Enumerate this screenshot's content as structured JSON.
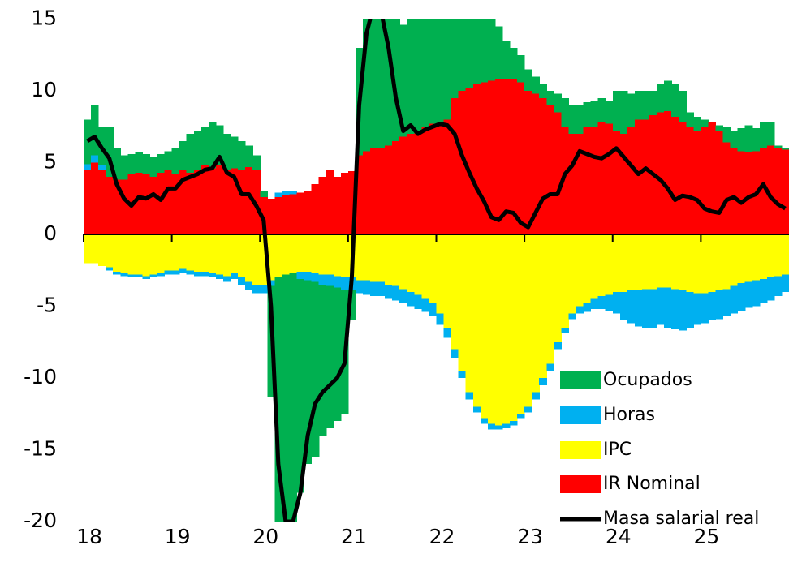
{
  "chart_data": {
    "type": "bar",
    "stacked": true,
    "categories": [
      "18",
      null,
      null,
      null,
      null,
      null,
      null,
      null,
      null,
      null,
      null,
      null,
      "19",
      null,
      null,
      null,
      null,
      null,
      null,
      null,
      null,
      null,
      null,
      null,
      "20",
      null,
      null,
      null,
      null,
      null,
      null,
      null,
      null,
      null,
      null,
      null,
      "21",
      null,
      null,
      null,
      null,
      null,
      null,
      null,
      null,
      null,
      null,
      null,
      "22",
      null,
      null,
      null,
      null,
      null,
      null,
      null,
      null,
      null,
      null,
      null,
      "23",
      null,
      null,
      null,
      null,
      null,
      null,
      null,
      null,
      null,
      null,
      null,
      "24",
      null,
      null,
      null,
      null,
      null,
      null,
      null,
      null,
      null,
      null,
      null,
      "25",
      null,
      null,
      null,
      null,
      null,
      null,
      null,
      null,
      null,
      null,
      null
    ],
    "ylim": [
      -20,
      15
    ],
    "yticks": [
      -20,
      -15,
      -10,
      -5,
      0,
      5,
      10,
      15
    ],
    "grid": false,
    "legend": "lower right",
    "series": [
      {
        "name": "Ocupados",
        "color": "#00b050",
        "values": [
          3.1,
          3.5,
          2.7,
          3.5,
          2.2,
          1.7,
          1.4,
          1.4,
          1.4,
          1.4,
          1.3,
          1.3,
          1.8,
          2,
          2.7,
          2.7,
          2.7,
          3.2,
          2.8,
          2.5,
          2.2,
          2,
          1.5,
          1,
          0.4,
          -7.7,
          -17,
          -17.2,
          -17.3,
          -14.9,
          -12.8,
          -12.2,
          -10.5,
          -9.9,
          -9.3,
          -8.6,
          -2.1,
          7.5,
          10.2,
          11,
          10.5,
          9.8,
          9,
          7.8,
          8.5,
          8.8,
          9,
          8.3,
          8.3,
          7.5,
          6,
          5.5,
          5.1,
          4.7,
          4.4,
          4.3,
          3.7,
          2.7,
          2.2,
          1.9,
          1.5,
          1.2,
          1,
          1,
          1.3,
          2,
          2,
          2,
          1.7,
          1.8,
          1.7,
          1.6,
          2.8,
          3,
          2.3,
          2,
          2,
          1.7,
          2,
          2.1,
          2.3,
          2.2,
          1,
          1,
          0.5,
          0,
          0.4,
          1.1,
          1.2,
          1.6,
          1.9,
          1.6,
          1.8,
          1.6,
          0.2,
          0.1
        ]
      },
      {
        "name": "Horas",
        "color": "#00b0f0",
        "values": [
          0.4,
          0.5,
          0.3,
          -0.2,
          -0.2,
          -0.2,
          -0.2,
          -0.2,
          -0.2,
          -0.2,
          -0.2,
          -0.3,
          -0.3,
          -0.3,
          -0.3,
          -0.3,
          -0.3,
          -0.3,
          -0.3,
          -0.4,
          -0.4,
          -0.5,
          -0.6,
          -0.6,
          -0.6,
          -0.4,
          0.3,
          0.3,
          0.2,
          -0.5,
          -0.6,
          -0.6,
          -0.7,
          -0.8,
          -0.8,
          -0.9,
          -0.9,
          -0.9,
          -1,
          -1,
          -1,
          -1,
          -1,
          -1,
          -1,
          -1,
          -0.9,
          -0.9,
          -0.8,
          -0.7,
          -0.6,
          -0.5,
          -0.5,
          -0.4,
          -0.4,
          -0.4,
          -0.3,
          -0.3,
          -0.3,
          -0.3,
          -0.4,
          -0.5,
          -0.5,
          -0.5,
          -0.5,
          -0.4,
          -0.4,
          -0.5,
          -0.6,
          -0.7,
          -0.9,
          -1.1,
          -1.5,
          -2,
          -2.3,
          -2.5,
          -2.7,
          -2.7,
          -2.6,
          -2.8,
          -2.8,
          -2.8,
          -2.5,
          -2.2,
          -2.1,
          -2,
          -2,
          -1.9,
          -1.9,
          -1.9,
          -1.8,
          -1.8,
          -1.7,
          -1.6,
          -1.4,
          -1.2
        ]
      },
      {
        "name": "IPC",
        "color": "#ffff00",
        "values": [
          -2,
          -2,
          -2.2,
          -2.3,
          -2.6,
          -2.7,
          -2.8,
          -2.8,
          -2.9,
          -2.8,
          -2.7,
          -2.5,
          -2.5,
          -2.4,
          -2.5,
          -2.6,
          -2.6,
          -2.7,
          -2.8,
          -2.9,
          -2.7,
          -3,
          -3.3,
          -3.5,
          -3.5,
          -3.2,
          -3,
          -2.8,
          -2.7,
          -2.6,
          -2.6,
          -2.7,
          -2.8,
          -2.8,
          -2.9,
          -3,
          -3,
          -3.2,
          -3.2,
          -3.3,
          -3.3,
          -3.5,
          -3.6,
          -3.8,
          -4,
          -4.2,
          -4.5,
          -4.8,
          -5.5,
          -6.5,
          -8,
          -9.5,
          -11,
          -12,
          -12.8,
          -13.2,
          -13.3,
          -13.2,
          -13,
          -12.5,
          -12,
          -11,
          -10,
          -9,
          -7.5,
          -6.5,
          -5.5,
          -5,
          -4.8,
          -4.5,
          -4.3,
          -4.2,
          -4,
          -4,
          -3.9,
          -3.9,
          -3.8,
          -3.8,
          -3.7,
          -3.7,
          -3.8,
          -3.9,
          -4,
          -4.1,
          -4.1,
          -4,
          -3.9,
          -3.8,
          -3.6,
          -3.4,
          -3.3,
          -3.2,
          -3.1,
          -3,
          -2.9,
          -2.8
        ]
      },
      {
        "name": "IR Nominal",
        "color": "#ff0000",
        "values": [
          4.5,
          5,
          4.5,
          4,
          3.8,
          3.8,
          4.2,
          4.3,
          4.2,
          4,
          4.3,
          4.5,
          4.2,
          4.5,
          4.3,
          4.5,
          4.8,
          4.6,
          4.8,
          4.5,
          4.6,
          4.5,
          4.7,
          4.5,
          2.6,
          2.5,
          2.6,
          2.7,
          2.8,
          2.9,
          3,
          3.5,
          4,
          4.5,
          4,
          4.3,
          4.4,
          5.5,
          5.8,
          6,
          6,
          6.2,
          6.5,
          6.8,
          7,
          7.2,
          7.5,
          7.7,
          7.7,
          8,
          9.5,
          10,
          10.2,
          10.5,
          10.6,
          10.7,
          10.8,
          10.8,
          10.8,
          10.6,
          10,
          9.8,
          9.5,
          9,
          8.5,
          7.5,
          7,
          7,
          7.5,
          7.5,
          7.8,
          7.7,
          7.2,
          7,
          7.5,
          8,
          8,
          8.3,
          8.5,
          8.6,
          8.2,
          7.8,
          7.5,
          7.2,
          7.5,
          7.8,
          7.2,
          6.4,
          6,
          5.8,
          5.7,
          5.8,
          6,
          6.2,
          6,
          5.9
        ]
      },
      {
        "name": "Masa salarial real",
        "color": "#000000",
        "type": "line",
        "values": [
          6.5,
          6.8,
          6,
          5.3,
          3.5,
          2.5,
          2,
          2.6,
          2.5,
          2.8,
          2.4,
          3.2,
          3.2,
          3.8,
          4,
          4.2,
          4.5,
          4.6,
          5.4,
          4.3,
          4,
          2.8,
          2.8,
          2,
          1,
          -5,
          -16,
          -20,
          -20,
          -18,
          -14,
          -11.8,
          -11,
          -10.5,
          -10,
          -9,
          -3,
          9,
          14,
          16,
          15.5,
          13,
          9.5,
          7.2,
          7.6,
          7,
          7.3,
          7.5,
          7.7,
          7.6,
          7,
          5.5,
          4.3,
          3.2,
          2.3,
          1.2,
          1,
          1.6,
          1.5,
          0.8,
          0.5,
          1.5,
          2.5,
          2.8,
          2.8,
          4.2,
          4.8,
          5.8,
          5.6,
          5.4,
          5.3,
          5.6,
          6,
          5.4,
          4.8,
          4.2,
          4.6,
          4.2,
          3.8,
          3.2,
          2.4,
          2.7,
          2.6,
          2.4,
          1.8,
          1.6,
          1.5,
          2.4,
          2.6,
          2.2,
          2.6,
          2.8,
          3.5,
          2.6,
          2.1,
          1.8
        ]
      }
    ]
  }
}
